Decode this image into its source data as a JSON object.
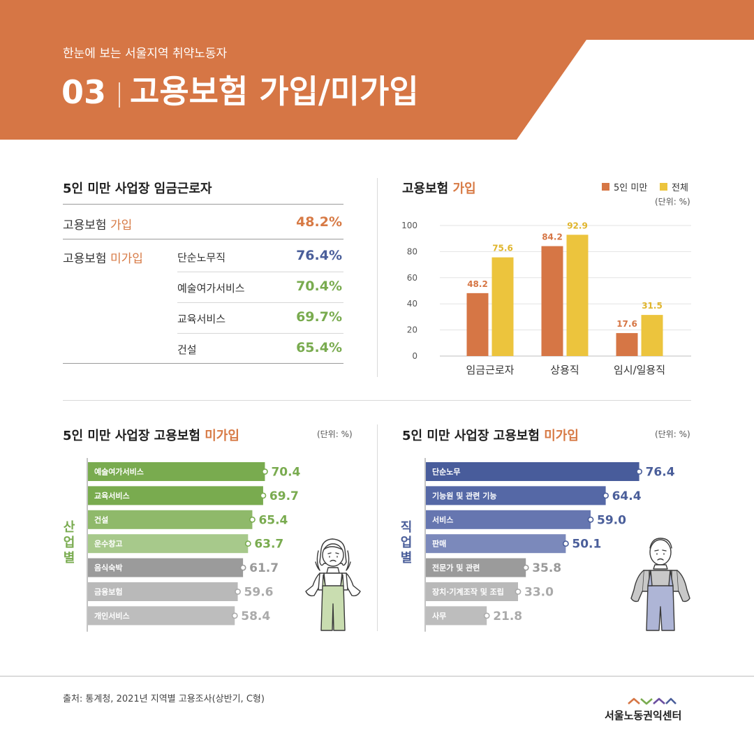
{
  "header": {
    "subtitle": "한눈에 보는 서울지역 취약노동자",
    "number": "03",
    "title": "고용보험 가입/미가입"
  },
  "summary": {
    "title": "5인 미만 사업장 임금근로자",
    "rows": [
      {
        "label_prefix": "고용보험 ",
        "label_accent": "가입",
        "category": "",
        "value": "48.2%"
      }
    ],
    "uninsured_label_prefix": "고용보험 ",
    "uninsured_label_accent": "미가입",
    "uninsured": [
      {
        "category": "단순노무직",
        "value": "76.4%",
        "color": "#4a5e9a"
      },
      {
        "category": "예술여가서비스",
        "value": "70.4%",
        "color": "#79ab4f"
      },
      {
        "category": "교육서비스",
        "value": "69.7%",
        "color": "#79ab4f"
      },
      {
        "category": "건설",
        "value": "65.4%",
        "color": "#79ab4f"
      }
    ]
  },
  "legend": {
    "a": "5인 미만",
    "b": "전체"
  },
  "units": {
    "top": "(단위: %)",
    "industry": "(단위: %)",
    "occupation": "(단위: %)"
  },
  "industry_side_label": [
    "산",
    "업",
    "별"
  ],
  "occupation_side_label": [
    "직",
    "업",
    "별"
  ],
  "source": "출처: 통계청, 2021년 지역별 고용조사(상반기, C형)",
  "logo": "서울노동권익센터",
  "colors": {
    "header": "#d67645",
    "small": "#d67645",
    "total": "#ecc43d",
    "industry_accent": "#79ab4f",
    "occupation_accent": "#4a5e9a"
  },
  "chart_data": [
    {
      "type": "bar",
      "title_prefix": "고용보험 ",
      "title_accent": "가입",
      "categories": [
        "임금근로자",
        "상용직",
        "임시/일용직"
      ],
      "series": [
        {
          "name": "5인 미만",
          "values": [
            48.2,
            84.2,
            17.6
          ],
          "color": "#d67645"
        },
        {
          "name": "전체",
          "values": [
            75.6,
            92.9,
            31.5
          ],
          "color": "#ecc43d"
        }
      ],
      "ylim": [
        0,
        100
      ],
      "yticks": [
        0,
        20,
        40,
        60,
        80,
        100
      ],
      "grid": true,
      "legend": "top-right"
    },
    {
      "type": "bar",
      "orientation": "horizontal",
      "title_prefix": "5인 미만 사업장 고용보험 ",
      "title_accent": "미가입",
      "categories": [
        "예술여가서비스",
        "교육서비스",
        "건설",
        "운수창고",
        "음식숙박",
        "금융보험",
        "개인서비스"
      ],
      "values": [
        70.4,
        69.7,
        65.4,
        63.7,
        61.7,
        59.6,
        58.4
      ],
      "colors": [
        "#79ab4f",
        "#79ab4f",
        "#8fb96a",
        "#a7c98b",
        "#9b9b9b",
        "#b9b9b9",
        "#bdbdbd"
      ],
      "label_colors": [
        "#79ab4f",
        "#79ab4f",
        "#79ab4f",
        "#79ab4f",
        "#999999",
        "#aaaaaa",
        "#aaaaaa"
      ]
    },
    {
      "type": "bar",
      "orientation": "horizontal",
      "title_prefix": "5인 미만 사업장 고용보험 ",
      "title_accent": "미가입",
      "categories": [
        "단순노무",
        "기능원 및 관련 기능",
        "서비스",
        "판매",
        "전문가 및 관련",
        "장치·기계조작 및 조립",
        "사무"
      ],
      "values": [
        76.4,
        64.4,
        59.0,
        50.1,
        35.8,
        33.0,
        21.8
      ],
      "colors": [
        "#485c9b",
        "#5568a6",
        "#6676b0",
        "#7b89bb",
        "#9b9b9b",
        "#b9b9b9",
        "#bdbdbd"
      ],
      "label_colors": [
        "#4a5e9a",
        "#4a5e9a",
        "#4a5e9a",
        "#4a5e9a",
        "#999999",
        "#aaaaaa",
        "#aaaaaa"
      ]
    }
  ]
}
